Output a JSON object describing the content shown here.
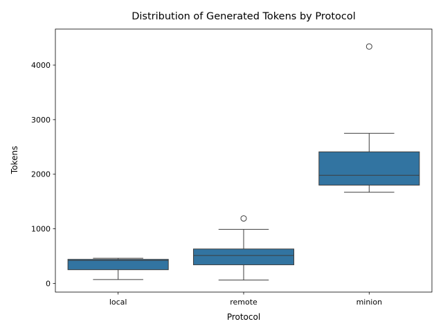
{
  "chart_data": {
    "type": "box",
    "title": "Distribution of Generated Tokens by Protocol",
    "xlabel": "Protocol",
    "ylabel": "Tokens",
    "ylim": [
      -160,
      4660
    ],
    "yticks": [
      0,
      1000,
      2000,
      3000,
      4000
    ],
    "categories": [
      "local",
      "remote",
      "minion"
    ],
    "boxes": [
      {
        "category": "local",
        "whisker_low": 70,
        "q1": 250,
        "median": 420,
        "q3": 440,
        "whisker_high": 460,
        "outliers": []
      },
      {
        "category": "remote",
        "whisker_low": 60,
        "q1": 340,
        "median": 510,
        "q3": 630,
        "whisker_high": 990,
        "outliers": [
          1190
        ]
      },
      {
        "category": "minion",
        "whisker_low": 1670,
        "q1": 1800,
        "median": 1980,
        "q3": 2410,
        "whisker_high": 2750,
        "outliers": [
          4340
        ]
      }
    ],
    "box_color": "#3274a1",
    "line_color": "#3d3d3d",
    "grid": false,
    "legend": "none"
  }
}
